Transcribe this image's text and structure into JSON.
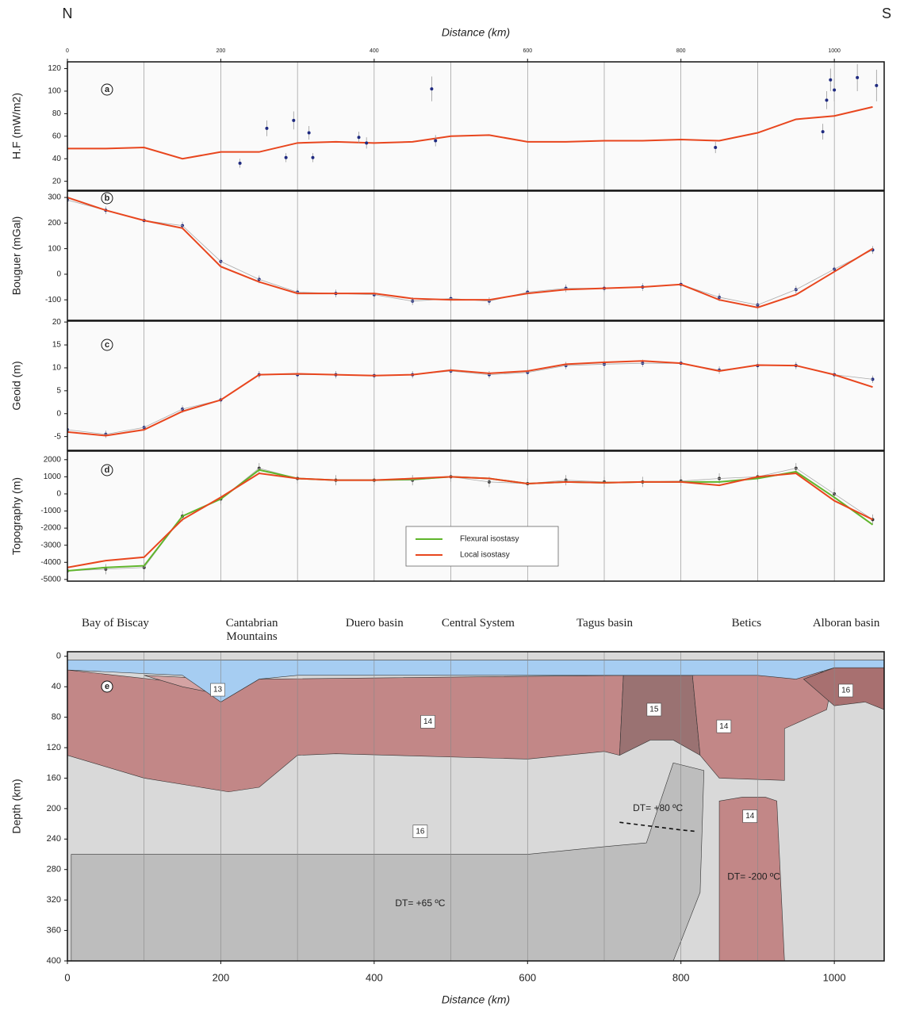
{
  "header": {
    "left": "N",
    "right": "S"
  },
  "chart_data": [
    {
      "type": "line",
      "label": "a",
      "ylabel": "H.F (mW/m2)",
      "xlabel": "Distance (km)",
      "xlim": [
        0,
        1065
      ],
      "xticks": [
        0,
        200,
        400,
        600,
        800,
        1000
      ],
      "xgrid": [
        100,
        200,
        300,
        400,
        500,
        600,
        700,
        800,
        900,
        1000
      ],
      "ylim": [
        12,
        126
      ],
      "yticks": [
        20,
        40,
        60,
        80,
        100,
        120
      ],
      "x": [
        0,
        50,
        100,
        150,
        200,
        250,
        300,
        350,
        400,
        450,
        500,
        550,
        600,
        650,
        700,
        750,
        800,
        850,
        900,
        950,
        1000,
        1050
      ],
      "series": [
        {
          "color": "#e8461e",
          "values": [
            49,
            49,
            50,
            40,
            46,
            46,
            54,
            55,
            54,
            55,
            60,
            61,
            55,
            55,
            56,
            56,
            57,
            56,
            63,
            75,
            78,
            86
          ]
        },
        {
          "color": "#1f2a80",
          "x": [
            225,
            260,
            285,
            295,
            315,
            320,
            380,
            390,
            475,
            480,
            845,
            985,
            990,
            995,
            1000,
            1030,
            1055
          ],
          "values": [
            36,
            67,
            41,
            74,
            63,
            41,
            59,
            54,
            102,
            56,
            50,
            64,
            92,
            110,
            101,
            112,
            105
          ],
          "errors": [
            4,
            7,
            4,
            8,
            6,
            4,
            5,
            5,
            11,
            5,
            5,
            7,
            8,
            10,
            10,
            12,
            14
          ]
        }
      ]
    },
    {
      "type": "line",
      "label": "b",
      "ylabel": "Bouguer (mGal)",
      "xlim": [
        0,
        1065
      ],
      "xgrid": [
        100,
        200,
        300,
        400,
        500,
        600,
        700,
        800,
        900,
        1000
      ],
      "ylim": [
        -180,
        325
      ],
      "yticks": [
        -100,
        0,
        100,
        200,
        300
      ],
      "x": [
        0,
        50,
        100,
        150,
        200,
        250,
        300,
        350,
        400,
        450,
        500,
        550,
        600,
        650,
        700,
        750,
        800,
        850,
        900,
        950,
        1000,
        1050
      ],
      "series": [
        {
          "color": "#1f2a80",
          "values": [
            290,
            250,
            210,
            190,
            50,
            -20,
            -70,
            -75,
            -80,
            -105,
            -95,
            -105,
            -70,
            -55,
            -55,
            -50,
            -40,
            -90,
            -120,
            -60,
            20,
            95
          ],
          "errors": [
            15,
            15,
            15,
            15,
            15,
            15,
            15,
            15,
            15,
            15,
            15,
            15,
            15,
            15,
            15,
            15,
            15,
            15,
            15,
            15,
            15,
            15
          ]
        },
        {
          "color": "#e8461e",
          "values": [
            300,
            250,
            210,
            180,
            30,
            -30,
            -75,
            -75,
            -75,
            -95,
            -100,
            -100,
            -75,
            -60,
            -55,
            -50,
            -40,
            -100,
            -130,
            -80,
            10,
            100
          ]
        }
      ]
    },
    {
      "type": "line",
      "label": "c",
      "ylabel": "Geoid (m)",
      "xlim": [
        0,
        1065
      ],
      "xgrid": [
        100,
        200,
        300,
        400,
        500,
        600,
        700,
        800,
        900,
        1000
      ],
      "ylim": [
        -8,
        20.2
      ],
      "yticks": [
        -5,
        0,
        5,
        10,
        15,
        20
      ],
      "x": [
        0,
        50,
        100,
        150,
        200,
        250,
        300,
        350,
        400,
        450,
        500,
        550,
        600,
        650,
        700,
        750,
        800,
        850,
        900,
        950,
        1000,
        1050
      ],
      "series": [
        {
          "color": "#1f2a80",
          "values": [
            -3.5,
            -4.5,
            -3,
            1,
            3,
            8.5,
            8.5,
            8.5,
            8.3,
            8.5,
            9.3,
            8.5,
            9,
            10.5,
            10.8,
            11,
            11,
            9.5,
            10.5,
            10.5,
            8.5,
            7.5
          ],
          "errors": [
            0.8,
            0.8,
            0.8,
            0.8,
            0.8,
            0.8,
            0.8,
            0.8,
            0.8,
            0.8,
            0.8,
            0.8,
            0.8,
            0.8,
            0.8,
            0.8,
            0.8,
            0.8,
            0.8,
            0.8,
            0.8,
            0.8
          ]
        },
        {
          "color": "#e8461e",
          "values": [
            -4,
            -4.8,
            -3.5,
            0.5,
            3,
            8.5,
            8.7,
            8.5,
            8.3,
            8.5,
            9.5,
            8.8,
            9.3,
            10.8,
            11.2,
            11.5,
            11,
            9.3,
            10.6,
            10.5,
            8.5,
            5.8
          ]
        }
      ]
    },
    {
      "type": "line",
      "label": "d",
      "ylabel": "Topography (m)",
      "xlim": [
        0,
        1065
      ],
      "xgrid": [
        100,
        200,
        300,
        400,
        500,
        600,
        700,
        800,
        900,
        1000
      ],
      "ylim": [
        -5100,
        2500
      ],
      "yticks": [
        -5000,
        -4000,
        -3000,
        -2000,
        -1000,
        0,
        1000,
        2000
      ],
      "x": [
        0,
        50,
        100,
        150,
        200,
        250,
        300,
        350,
        400,
        450,
        500,
        550,
        600,
        650,
        700,
        750,
        800,
        850,
        900,
        950,
        1000,
        1050
      ],
      "series": [
        {
          "color": "#333333",
          "values": [
            -4500,
            -4400,
            -4300,
            -1300,
            -300,
            1500,
            900,
            800,
            800,
            800,
            1000,
            700,
            600,
            800,
            700,
            700,
            750,
            900,
            1000,
            1500,
            0,
            -1500
          ],
          "errors": [
            300,
            300,
            300,
            300,
            300,
            300,
            300,
            300,
            300,
            300,
            300,
            300,
            300,
            300,
            300,
            300,
            300,
            300,
            300,
            300,
            300,
            300
          ]
        },
        {
          "name": "Flexural isostasy",
          "color": "#5fb52b",
          "values": [
            -4500,
            -4300,
            -4200,
            -1300,
            -300,
            1400,
            900,
            800,
            800,
            850,
            1000,
            900,
            600,
            700,
            650,
            700,
            700,
            700,
            900,
            1300,
            -200,
            -1800
          ]
        },
        {
          "name": "Local isostasy",
          "color": "#e8461e",
          "values": [
            -4300,
            -3900,
            -3700,
            -1500,
            -200,
            1200,
            900,
            800,
            800,
            900,
            1000,
            900,
            600,
            700,
            650,
            700,
            700,
            500,
            1000,
            1200,
            -400,
            -1500
          ]
        }
      ]
    },
    {
      "type": "section",
      "label": "e",
      "ylabel": "Depth (km)",
      "xlabel": "Distance (km)",
      "xlim": [
        0,
        1065
      ],
      "xticks": [
        0,
        200,
        400,
        600,
        800,
        1000
      ],
      "xgrid": [
        100,
        200,
        300,
        400,
        500,
        600,
        700,
        800,
        900,
        1000
      ],
      "ylim": [
        400,
        -6
      ],
      "yticks": [
        0,
        40,
        80,
        120,
        160,
        200,
        240,
        280,
        320,
        360,
        400
      ],
      "regions": [
        {
          "name": "Bay of Biscay",
          "x": 62
        },
        {
          "name": "Cantabrian Mountains",
          "x": 240
        },
        {
          "name": "Duero basin",
          "x": 400
        },
        {
          "name": "Central System",
          "x": 535
        },
        {
          "name": "Tagus basin",
          "x": 700
        },
        {
          "name": "Betics",
          "x": 885
        },
        {
          "name": "Alboran basin",
          "x": 1015
        }
      ],
      "bodies": [
        {
          "color": "#d9d9d9",
          "points": [
            [
              0,
              -6
            ],
            [
              1065,
              -6
            ],
            [
              1065,
              400
            ],
            [
              0,
              400
            ]
          ]
        },
        {
          "color": "#bdbdbd",
          "points": [
            [
              5,
              260
            ],
            [
              600,
              260
            ],
            [
              700,
              250
            ],
            [
              755,
              245
            ],
            [
              790,
              140
            ],
            [
              830,
              150
            ],
            [
              825,
              310
            ],
            [
              790,
              400
            ],
            [
              5,
              400
            ]
          ]
        },
        {
          "color": "#c28787",
          "points": [
            [
              0,
              18
            ],
            [
              200,
              40
            ],
            [
              200,
              60
            ],
            [
              250,
              30
            ],
            [
              725,
              25
            ],
            [
              720,
              130
            ],
            [
              700,
              125
            ],
            [
              600,
              135
            ],
            [
              350,
              128
            ],
            [
              300,
              130
            ],
            [
              250,
              172
            ],
            [
              210,
              178
            ],
            [
              100,
              160
            ],
            [
              0,
              130
            ]
          ]
        },
        {
          "color": "#d4a3a3",
          "points": [
            [
              100,
              25
            ],
            [
              200,
              30
            ],
            [
              200,
              50
            ],
            [
              150,
              40
            ]
          ]
        },
        {
          "color": "#9a7272",
          "points": [
            [
              725,
              25
            ],
            [
              815,
              25
            ],
            [
              825,
              130
            ],
            [
              790,
              110
            ],
            [
              760,
              110
            ],
            [
              720,
              130
            ]
          ]
        },
        {
          "color": "#c28787",
          "points": [
            [
              815,
              25
            ],
            [
              1000,
              20
            ],
            [
              990,
              70
            ],
            [
              935,
              95
            ],
            [
              935,
              163
            ],
            [
              850,
              160
            ],
            [
              825,
              130
            ]
          ]
        },
        {
          "color": "#a87070",
          "points": [
            [
              960,
              30
            ],
            [
              1000,
              15
            ],
            [
              1065,
              15
            ],
            [
              1065,
              70
            ],
            [
              1040,
              60
            ],
            [
              1000,
              65
            ]
          ]
        },
        {
          "color": "#c28787",
          "points": [
            [
              850,
              190
            ],
            [
              880,
              185
            ],
            [
              910,
              185
            ],
            [
              925,
              190
            ],
            [
              935,
              400
            ],
            [
              850,
              400
            ]
          ]
        },
        {
          "color": "#a6cdf2",
          "points": [
            [
              0,
              5
            ],
            [
              1065,
              5
            ],
            [
              1065,
              15
            ],
            [
              1000,
              15
            ],
            [
              950,
              30
            ],
            [
              900,
              25
            ],
            [
              800,
              25
            ],
            [
              600,
              25
            ],
            [
              400,
              25
            ],
            [
              300,
              25
            ],
            [
              250,
              30
            ],
            [
              200,
              60
            ],
            [
              150,
              25
            ],
            [
              0,
              18
            ]
          ]
        }
      ],
      "dashed": [
        [
          720,
          218
        ],
        [
          800,
          228
        ],
        [
          820,
          230
        ]
      ],
      "annotations": [
        {
          "text": "13",
          "x": 196,
          "y": 44,
          "box": true
        },
        {
          "text": "14",
          "x": 470,
          "y": 86,
          "box": true
        },
        {
          "text": "15",
          "x": 765,
          "y": 70,
          "box": true
        },
        {
          "text": "14",
          "x": 856,
          "y": 92,
          "box": true
        },
        {
          "text": "16",
          "x": 1015,
          "y": 45,
          "box": true
        },
        {
          "text": "16",
          "x": 460,
          "y": 230,
          "box": true
        },
        {
          "text": "14",
          "x": 890,
          "y": 210,
          "box": true
        },
        {
          "text": "DT= +80 ºC",
          "x": 770,
          "y": 200,
          "box": false
        },
        {
          "text": "DT= -200 ºC",
          "x": 895,
          "y": 290,
          "box": false
        },
        {
          "text": "DT= +65 ºC",
          "x": 460,
          "y": 325,
          "box": false
        }
      ]
    }
  ]
}
